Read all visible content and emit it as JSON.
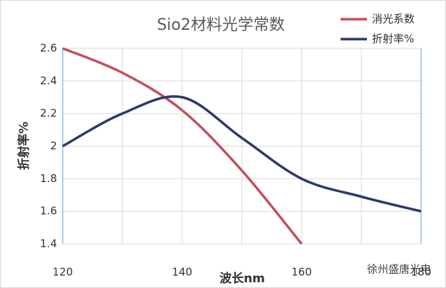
{
  "chart_data": {
    "type": "line",
    "title": "Sio2材料光学常数",
    "x_label": "波长nm",
    "y_label": "折射率%",
    "x": [
      120,
      130,
      140,
      150,
      160,
      170,
      180
    ],
    "series": [
      {
        "name": "消光系数",
        "color": "#c44e5c",
        "values": [
          2.6,
          2.45,
          2.22,
          1.85,
          1.4,
          null,
          null
        ]
      },
      {
        "name": "折射率%",
        "color": "#2b3a67",
        "values": [
          2.0,
          2.2,
          2.3,
          2.05,
          1.8,
          1.69,
          1.6
        ]
      }
    ],
    "xlim": [
      120,
      180
    ],
    "xticks": [
      120,
      140,
      160,
      180
    ],
    "ylim": [
      1.4,
      2.6
    ],
    "yticks": [
      {
        "value": 1.4,
        "label": "1.4"
      },
      {
        "value": 1.6,
        "label": "1.6"
      },
      {
        "value": 1.8,
        "label": "1.8"
      },
      2,
      {
        "value": 2.2,
        "label": "2.2"
      },
      {
        "value": 2.4,
        "label": "2.4"
      },
      {
        "value": 2.6,
        "label": "2.6"
      }
    ],
    "grid": true,
    "legend": "upper right",
    "watermark": "徐州盛唐光电"
  }
}
